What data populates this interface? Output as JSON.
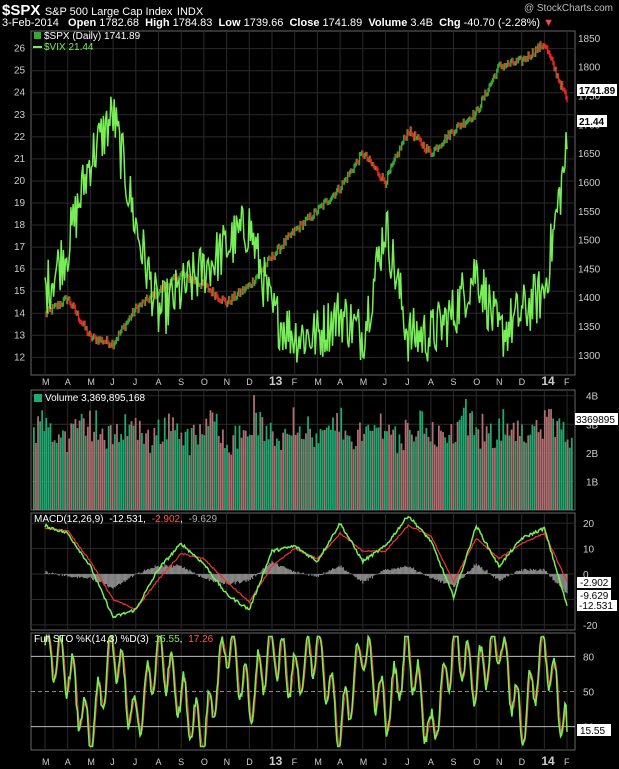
{
  "header": {
    "symbol": "$SPX",
    "name": "S&P 500 Large Cap Index",
    "exchange": "INDX",
    "watermark": "@ StockCharts.com",
    "date": "3-Feb-2014",
    "open_label": "Open",
    "open": "1782.68",
    "high_label": "High",
    "high": "1784.83",
    "low_label": "Low",
    "low": "1739.66",
    "close_label": "Close",
    "close": "1741.89",
    "volume_label": "Volume",
    "volume": "3.4B",
    "chg_label": "Chg",
    "chg": "-40.70 (-2.28%)",
    "chg_arrow": "▼"
  },
  "colors": {
    "background": "#000000",
    "up": "#33aa33",
    "down": "#ee2222",
    "vix": "#77ee55",
    "volume_up": "#1fa870",
    "volume_down": "#b06e72",
    "macd_line": "#77ee55",
    "signal_line": "#ee3333",
    "histogram": "#888888",
    "label_box": "#ffffff"
  },
  "panels": {
    "price": {
      "legend_spx": "$SPX (Daily) 1741.89",
      "legend_vix": "$VIX 21.44",
      "last_spx": "1741.89",
      "last_vix": "21.44"
    },
    "volume": {
      "legend": "Volume 3,369,895,168",
      "last": "3369895"
    },
    "macd": {
      "legend_title": "MACD(12,26,9)",
      "value1": "-12.531",
      "value2": "-2.902",
      "value3": "-9.629",
      "label_signal": "-2.902",
      "label_diff": "-9.629",
      "label_macd": "-12.531"
    },
    "sto": {
      "legend_title": "Full STO %K(14,3) %D(3)",
      "value1": "15.55",
      "value2": "17.26",
      "label_k": "15.55"
    }
  },
  "chart_data": [
    {
      "type": "line",
      "title": "$SPX S&P 500 Large Cap Index INDX",
      "x_labels": [
        "M",
        "A",
        "M",
        "J",
        "J",
        "A",
        "S",
        "O",
        "N",
        "D",
        "13",
        "F",
        "M",
        "A",
        "M",
        "J",
        "J",
        "A",
        "S",
        "O",
        "N",
        "D",
        "14",
        "F"
      ],
      "series": [
        {
          "name": "$SPX (Daily)",
          "axis": "right",
          "x": [
            "2012-03",
            "2012-04",
            "2012-05",
            "2012-06",
            "2012-07",
            "2012-08",
            "2012-09",
            "2012-10",
            "2012-11",
            "2012-12",
            "2013-01",
            "2013-02",
            "2013-03",
            "2013-04",
            "2013-05",
            "2013-06",
            "2013-07",
            "2013-08",
            "2013-09",
            "2013-10",
            "2013-11",
            "2013-12",
            "2014-01",
            "2014-02"
          ],
          "values": [
            1370,
            1398,
            1330,
            1320,
            1380,
            1410,
            1440,
            1420,
            1390,
            1420,
            1470,
            1515,
            1550,
            1590,
            1650,
            1600,
            1690,
            1650,
            1690,
            1720,
            1800,
            1810,
            1840,
            1742
          ]
        },
        {
          "name": "$VIX",
          "axis": "left",
          "x": [
            "2012-03",
            "2012-04",
            "2012-05",
            "2012-06",
            "2012-07",
            "2012-08",
            "2012-09",
            "2012-10",
            "2012-11",
            "2012-12",
            "2013-01",
            "2013-02",
            "2013-03",
            "2013-04",
            "2013-05",
            "2013-06",
            "2013-07",
            "2013-08",
            "2013-09",
            "2013-10",
            "2013-11",
            "2013-12",
            "2014-01",
            "2014-02"
          ],
          "values": [
            15,
            17,
            21,
            23,
            18,
            14,
            15,
            16,
            17,
            18,
            14,
            13,
            13,
            14,
            13,
            18,
            13,
            13,
            14,
            16,
            13,
            14,
            15,
            21.44
          ]
        }
      ],
      "y_left_ticks": [
        12,
        13,
        14,
        15,
        16,
        17,
        18,
        19,
        20,
        21,
        22,
        23,
        24,
        25,
        26
      ],
      "y_right_ticks": [
        1300,
        1350,
        1400,
        1450,
        1500,
        1550,
        1600,
        1650,
        1700,
        1750,
        1800,
        1850
      ]
    },
    {
      "type": "bar",
      "title": "Volume 3,369,895,168",
      "y_ticks": [
        "1B",
        "2B",
        "3B",
        "4B"
      ],
      "ylim": [
        0,
        4.2
      ],
      "last_value": 3369895168
    },
    {
      "type": "line",
      "title": "MACD(12,26,9)",
      "y_ticks": [
        -20,
        -10,
        0,
        10,
        20
      ],
      "ylim": [
        -22,
        24
      ],
      "series": [
        {
          "name": "MACD",
          "values": [
            19,
            16,
            3,
            -17,
            -14,
            2,
            12,
            4,
            -8,
            -14,
            9,
            11,
            5,
            20,
            5,
            11,
            23,
            13,
            -9,
            19,
            3,
            14,
            18,
            -12.5
          ]
        },
        {
          "name": "Signal",
          "values": [
            18,
            17,
            5,
            -10,
            -14,
            -2,
            8,
            6,
            -3,
            -11,
            3,
            10,
            6,
            16,
            9,
            9,
            19,
            15,
            -3,
            14,
            6,
            12,
            16,
            -2.9
          ]
        }
      ],
      "last_values": {
        "macd": -12.531,
        "signal": -2.902,
        "histogram": -9.629
      }
    },
    {
      "type": "line",
      "title": "Full STO %K(14,3) %D(3)",
      "y_ticks": [
        20,
        50,
        80
      ],
      "ylim": [
        0,
        100
      ],
      "series": [
        {
          "name": "%K",
          "values": [
            85,
            70,
            10,
            90,
            20,
            85,
            45,
            10,
            95,
            40,
            90,
            60,
            90,
            15,
            90,
            30,
            85,
            10,
            90,
            60,
            95,
            20,
            90,
            15.55
          ]
        },
        {
          "name": "%D",
          "values": [
            84,
            72,
            14,
            85,
            25,
            80,
            48,
            14,
            90,
            44,
            86,
            62,
            86,
            20,
            86,
            34,
            82,
            14,
            86,
            62,
            90,
            25,
            86,
            17.26
          ]
        }
      ],
      "last_values": {
        "k": 15.55,
        "d": 17.26
      }
    }
  ]
}
